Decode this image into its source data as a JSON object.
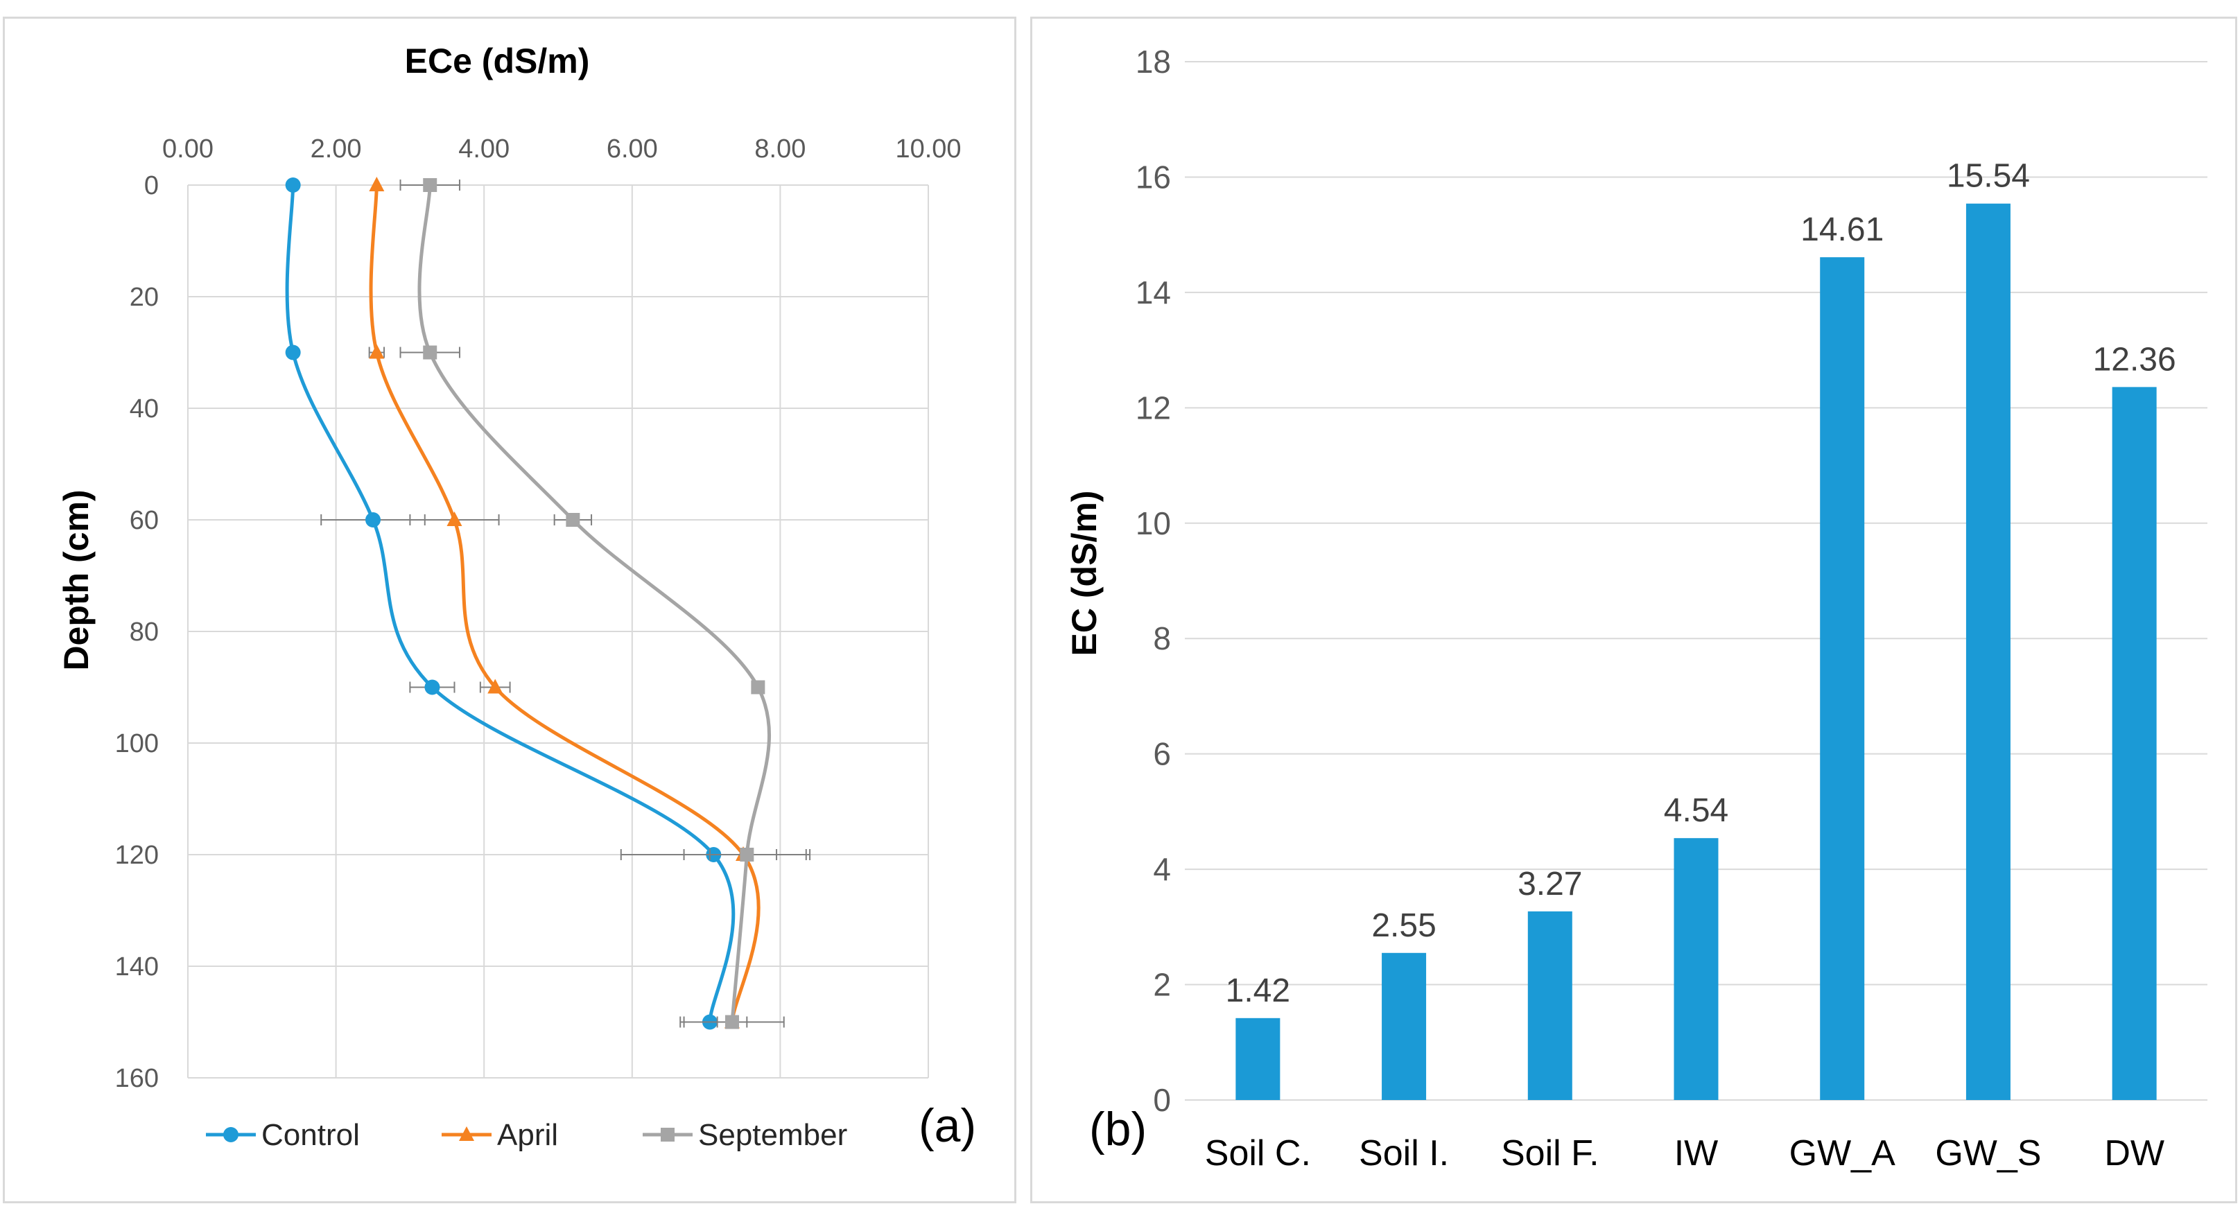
{
  "chart_data": [
    {
      "type": "line",
      "title": "ECe (dS/m)",
      "xlabel": "ECe (dS/m)",
      "ylabel": "Depth (cm)",
      "xlim": [
        0,
        10
      ],
      "ylim": [
        0,
        160
      ],
      "y_inverted": true,
      "x_ticks": [
        "0.00",
        "2.00",
        "4.00",
        "6.00",
        "8.00",
        "10.00"
      ],
      "y_ticks": [
        "0",
        "20",
        "40",
        "60",
        "80",
        "100",
        "120",
        "140",
        "160"
      ],
      "grid": true,
      "legend": "bottom",
      "panel_label": "(a)",
      "series": [
        {
          "name": "Control",
          "color": "#1f9bd7",
          "marker": "circle",
          "depth": [
            0,
            30,
            60,
            90,
            120,
            150
          ],
          "values": [
            1.42,
            1.42,
            2.5,
            3.3,
            7.1,
            7.05
          ],
          "error": [
            0,
            0,
            0.7,
            0.3,
            1.25,
            0.35
          ]
        },
        {
          "name": "April",
          "color": "#f58220",
          "marker": "triangle",
          "depth": [
            0,
            30,
            60,
            90,
            120,
            150
          ],
          "values": [
            2.55,
            2.55,
            3.6,
            4.15,
            7.5,
            7.35
          ],
          "error": [
            0,
            0.1,
            0.6,
            0.2,
            0.45,
            0.2
          ]
        },
        {
          "name": "September",
          "color": "#a5a5a5",
          "marker": "square",
          "depth": [
            0,
            30,
            60,
            90,
            120,
            150
          ],
          "values": [
            3.27,
            3.27,
            5.2,
            7.7,
            7.55,
            7.35
          ],
          "error": [
            0.4,
            0.4,
            0.25,
            0.05,
            0.85,
            0.7
          ]
        }
      ]
    },
    {
      "type": "bar",
      "ylabel": "EC (dS/m)",
      "xlabel": "",
      "ylim": [
        0,
        18
      ],
      "y_ticks": [
        "0",
        "2",
        "4",
        "6",
        "8",
        "10",
        "12",
        "14",
        "16",
        "18"
      ],
      "grid": true,
      "panel_label": "(b)",
      "bar_color": "#1b9ad6",
      "categories": [
        "Soil C.",
        "Soil I.",
        "Soil F.",
        "IW",
        "GW_A",
        "GW_S",
        "DW"
      ],
      "values": [
        1.42,
        2.55,
        3.27,
        4.54,
        14.61,
        15.54,
        12.36
      ],
      "labels": [
        "1.42",
        "2.55",
        "3.27",
        "4.54",
        "14.61",
        "15.54",
        "12.36"
      ]
    }
  ]
}
